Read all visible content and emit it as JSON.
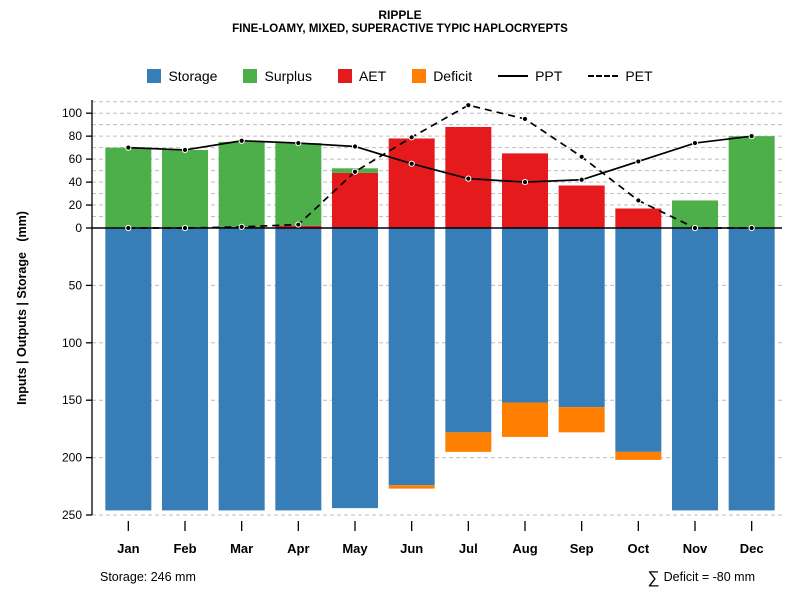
{
  "chart_data": {
    "type": "bar",
    "title": "RIPPLE",
    "subtitle": "FINE-LOAMY, MIXED, SUPERACTIVE TYPIC HAPLOCRYEPTS",
    "ylabel": "Inputs | Outputs | Storage   (mm)",
    "categories": [
      "Jan",
      "Feb",
      "Mar",
      "Apr",
      "May",
      "Jun",
      "Jul",
      "Aug",
      "Sep",
      "Oct",
      "Nov",
      "Dec"
    ],
    "axis": {
      "above_ticks": [
        0,
        20,
        40,
        60,
        80,
        100
      ],
      "below_ticks": [
        50,
        100,
        150,
        200,
        250
      ],
      "above_max": 110,
      "below_max": 250,
      "grid": "dashed"
    },
    "series": [
      {
        "name": "Storage",
        "kind": "bar-below",
        "color": "#377EB8",
        "values": [
          246,
          246,
          246,
          246,
          244,
          224,
          178,
          152,
          156,
          195,
          246,
          246
        ]
      },
      {
        "name": "Deficit",
        "kind": "bar-below",
        "color": "#FF7F00",
        "values": [
          0,
          0,
          0,
          0,
          0,
          3,
          17,
          30,
          22,
          7,
          0,
          0
        ]
      },
      {
        "name": "AET",
        "kind": "bar-above",
        "color": "#E41A1C",
        "values": [
          0,
          0,
          1,
          2,
          48,
          78,
          88,
          65,
          37,
          17,
          0,
          0
        ]
      },
      {
        "name": "Surplus",
        "kind": "bar-above",
        "color": "#4DAF4A",
        "values": [
          70,
          68,
          74,
          72,
          4,
          0,
          0,
          0,
          0,
          0,
          24,
          80
        ]
      },
      {
        "name": "PPT",
        "kind": "line",
        "dashed": false,
        "color": "#000000",
        "values": [
          70,
          68,
          76,
          74,
          71,
          56,
          43,
          40,
          42,
          58,
          74,
          80
        ]
      },
      {
        "name": "PET",
        "kind": "line",
        "dashed": true,
        "color": "#000000",
        "values": [
          0,
          0,
          1,
          3,
          49,
          79,
          107,
          95,
          62,
          24,
          0,
          0
        ]
      }
    ]
  },
  "legend": {
    "items": [
      {
        "label": "Storage",
        "swatch": "square",
        "color": "#377EB8"
      },
      {
        "label": "Surplus",
        "swatch": "square",
        "color": "#4DAF4A"
      },
      {
        "label": "AET",
        "swatch": "square",
        "color": "#E41A1C"
      },
      {
        "label": "Deficit",
        "swatch": "square",
        "color": "#FF7F00"
      },
      {
        "label": "PPT",
        "swatch": "line-solid",
        "color": "#000000"
      },
      {
        "label": "PET",
        "swatch": "line-dashed",
        "color": "#000000"
      }
    ]
  },
  "annotations": {
    "storage": "Storage: 246 mm",
    "sigma": "∑",
    "deficit": "Deficit = -80 mm"
  }
}
